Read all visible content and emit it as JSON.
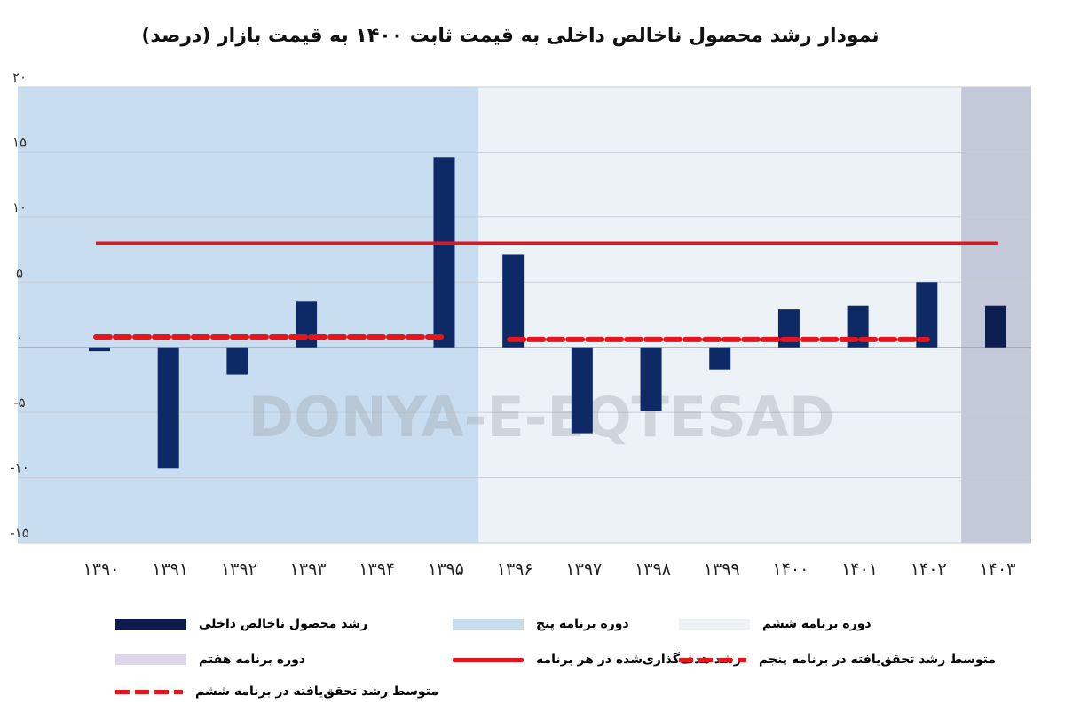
{
  "title": "نمودار رشد محصول ناخالص داخلی به قیمت ثابت ۱۴۰۰ به قیمت بازار (درصد)",
  "watermark": "DONYA-E-EQTESAD",
  "colors": {
    "bar": "#0d2a66",
    "target": "#e8141b",
    "avg": "#e8141b",
    "fifth": "#c9ddf0",
    "sixth": "#edf2f7",
    "seventh": "#c3c9d8"
  },
  "chart_data": {
    "type": "bar",
    "title": "نمودار رشد محصول ناخالص داخلی به قیمت ثابت ۱۴۰۰ به قیمت بازار (درصد)",
    "categories": [
      "۱۳۹۰",
      "۱۳۹۱",
      "۱۳۹۲",
      "۱۳۹۳",
      "۱۳۹۴",
      "۱۳۹۵",
      "۱۳۹۶",
      "۱۳۹۷",
      "۱۳۹۸",
      "۱۳۹۹",
      "۱۴۰۰",
      "۱۴۰۱",
      "۱۴۰۲",
      "۱۴۰۳"
    ],
    "series": [
      {
        "name": "رشد محصول ناخالص داخلی",
        "values": [
          -0.3,
          -9.3,
          -2.1,
          3.5,
          null,
          14.6,
          7.1,
          -6.6,
          -4.9,
          -1.7,
          2.9,
          3.2,
          5.0,
          3.2
        ]
      }
    ],
    "target_line": {
      "name": "رشد هدف‌گذاری‌شده در هر برنامه",
      "value": 8.0
    },
    "avg_lines": [
      {
        "name": "متوسط رشد تحقق‌یافته در برنامه پنجم",
        "value": 0.8,
        "from": "۱۳۹۰",
        "to": "۱۳۹۵"
      },
      {
        "name": "متوسط رشد تحقق‌یافته در برنامه ششم",
        "value": 0.6,
        "from": "۱۳۹۶",
        "to": "۱۴۰۲"
      }
    ],
    "periods": [
      {
        "name": "دوره برنامه پنج",
        "from": "۱۳۹۰",
        "to": "۱۳۹۵"
      },
      {
        "name": "دوره برنامه ششم",
        "from": "۱۳۹۶",
        "to": "۱۴۰۲"
      },
      {
        "name": "دوره برنامه هفتم",
        "from": "۱۴۰۳",
        "to": "۱۴۰۳"
      }
    ],
    "yticks": [
      20,
      15,
      10,
      5,
      0,
      -5,
      -10,
      -15
    ],
    "ytick_labels": [
      "۲۰",
      "۱۵",
      "۱۰",
      "۵",
      "۰",
      "-۵",
      "-۱۰",
      "-۱۵"
    ],
    "ylim": [
      -15,
      20
    ],
    "grid": true,
    "legend_position": "bottom"
  },
  "legend": [
    {
      "label": "رشد محصول ناخالص داخلی",
      "color": "#0d1a4d",
      "style": "box"
    },
    {
      "label": "دوره برنامه پنج",
      "color": "#c9ddf0",
      "style": "box"
    },
    {
      "label": "دوره برنامه ششم",
      "color": "#edf2f7",
      "style": "box"
    },
    {
      "label": "دوره برنامه هفتم",
      "color": "#ddd6ea",
      "style": "box"
    },
    {
      "label": "رشد هدف‌گذاری‌شده در هر برنامه",
      "color": "#e8141b",
      "style": "line"
    },
    {
      "label": "متوسط رشد تحقق‌یافته در برنامه پنجم",
      "color": "#e8141b",
      "style": "dash"
    },
    {
      "label": "متوسط رشد تحقق‌یافته در برنامه ششم",
      "color": "#e8141b",
      "style": "dash"
    }
  ]
}
